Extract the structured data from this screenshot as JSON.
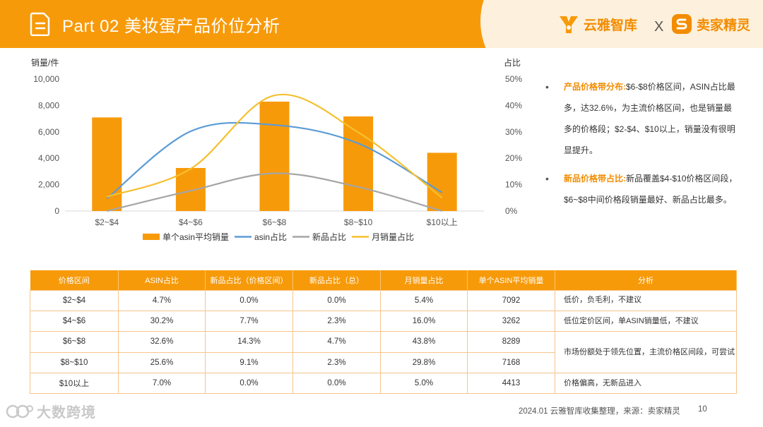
{
  "header": {
    "title": "Part 02 美妆蛋产品价位分析",
    "brand_a": "云雅智库",
    "separator": "X",
    "brand_b": "卖家精灵",
    "bg_color": "#f79a0a"
  },
  "chart_data": {
    "type": "bar",
    "categories": [
      "$2~$4",
      "$4~$6",
      "$6~$8",
      "$8~$10",
      "$10以上"
    ],
    "ylabel_left": "销量/件",
    "ylabel_right": "占比",
    "ylim_left": [
      0,
      10000
    ],
    "ylim_right": [
      0,
      50
    ],
    "left_ticks": [
      "0",
      "2,000",
      "4,000",
      "6,000",
      "8,000",
      "10,000"
    ],
    "right_ticks": [
      "0%",
      "10%",
      "20%",
      "30%",
      "40%",
      "50%"
    ],
    "series": [
      {
        "name": "单个asin平均销量",
        "type": "bar",
        "axis": "left",
        "color": "#f79a0a",
        "values": [
          7092,
          3262,
          8289,
          7168,
          4413
        ]
      },
      {
        "name": "asin占比",
        "type": "line",
        "axis": "right",
        "color": "#5b9bd5",
        "values": [
          4.7,
          30.2,
          32.6,
          25.6,
          7.0
        ]
      },
      {
        "name": "新品占比",
        "type": "line",
        "axis": "right",
        "color": "#a5a5a5",
        "values": [
          0.0,
          7.7,
          14.3,
          9.1,
          0.0
        ]
      },
      {
        "name": "月销量占比",
        "type": "line",
        "axis": "right",
        "color": "#f5c02f",
        "values": [
          5.4,
          16.0,
          43.8,
          29.8,
          5.0
        ]
      }
    ],
    "legend_position": "bottom"
  },
  "notes": [
    {
      "key": "产品价格带分布:",
      "text": "$6-$8价格区间，ASIN占比最多，达32.6%，为主流价格区间，也是销量最多的价格段；$2-$4、$10以上，销量没有很明显提升。"
    },
    {
      "key": "新品价格带占比:",
      "text": "新品覆盖$4-$10价格区间段，$6~$8中间价格段销量最好、新品占比最多。"
    }
  ],
  "bullet": "•",
  "table": {
    "headers": [
      "价格区间",
      "ASIN占比",
      "新品占比（价格区间）",
      "新品占比（总）",
      "月销量占比",
      "单个ASIN平均销量",
      "分析"
    ],
    "rows": [
      [
        "$2~$4",
        "4.7%",
        "0.0%",
        "0.0%",
        "5.4%",
        "7092"
      ],
      [
        "$4~$6",
        "30.2%",
        "7.7%",
        "2.3%",
        "16.0%",
        "3262"
      ],
      [
        "$6~$8",
        "32.6%",
        "14.3%",
        "4.7%",
        "43.8%",
        "8289"
      ],
      [
        "$8~$10",
        "25.6%",
        "9.1%",
        "2.3%",
        "29.8%",
        "7168"
      ],
      [
        "$10以上",
        "7.0%",
        "0.0%",
        "0.0%",
        "5.0%",
        "4413"
      ]
    ],
    "analysis": [
      "低价，负毛利，不建议",
      "低位定价区间，单ASIN销量低，不建议",
      "市场份额处于领先位置，主流价格区间段，可尝试",
      "价格偏高，无新品进入"
    ]
  },
  "footer": {
    "watermark": "大数跨境",
    "source": "2024.01 云雅智库收集整理，来源：卖家精灵",
    "page": "10"
  }
}
